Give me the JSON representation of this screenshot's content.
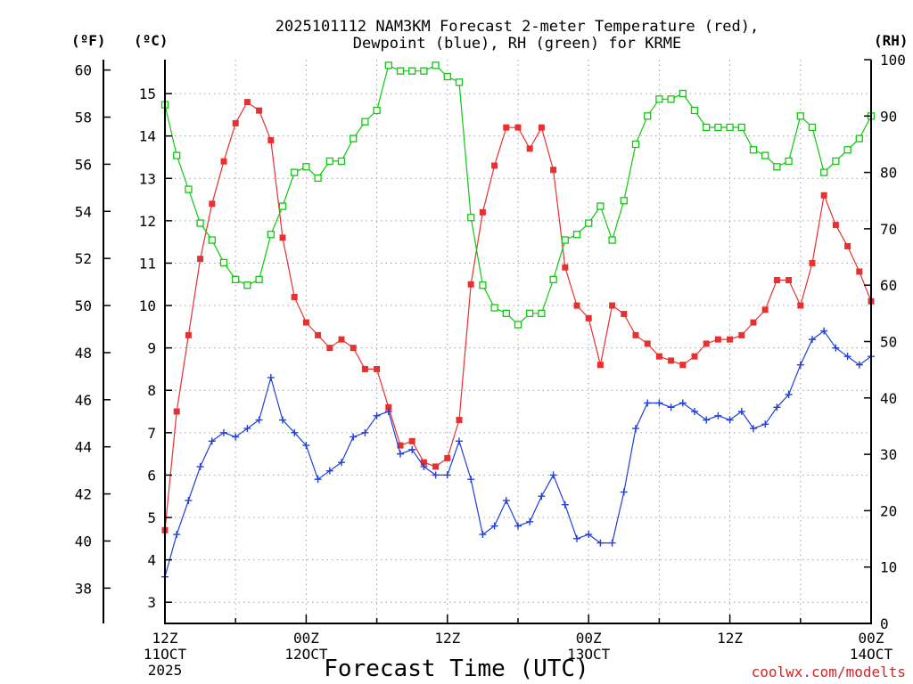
{
  "chart_data": {
    "type": "line",
    "title_line1": "2025101112 NAM3KM Forecast 2-meter Temperature (red),",
    "title_line2": "Dewpoint (blue), RH (green) for KRME",
    "xlabel": "Forecast Time (UTC)",
    "credit": "coolwx.com/modelts",
    "unit_left_f": "(ºF)",
    "unit_left_c": "(ºC)",
    "unit_right": "(RH)",
    "x_hours_range": [
      0,
      60
    ],
    "x_ticks": [
      {
        "hour": 0,
        "line1": "12Z",
        "line2": "11OCT",
        "line3": "2025"
      },
      {
        "hour": 12,
        "line1": "00Z",
        "line2": "12OCT",
        "line3": ""
      },
      {
        "hour": 24,
        "line1": "12Z",
        "line2": "",
        "line3": ""
      },
      {
        "hour": 36,
        "line1": "00Z",
        "line2": "13OCT",
        "line3": ""
      },
      {
        "hour": 48,
        "line1": "12Z",
        "line2": "",
        "line3": ""
      },
      {
        "hour": 60,
        "line1": "00Z",
        "line2": "14OCT",
        "line3": ""
      }
    ],
    "y_celsius_ticks": [
      3,
      4,
      5,
      6,
      7,
      8,
      9,
      10,
      11,
      12,
      13,
      14,
      15
    ],
    "y_fahrenheit_ticks": [
      38,
      40,
      42,
      44,
      46,
      48,
      50,
      52,
      54,
      56,
      58,
      60
    ],
    "y_rh_ticks": [
      0,
      10,
      20,
      30,
      40,
      50,
      60,
      70,
      80,
      90,
      100
    ],
    "ylim_celsius": [
      2.5,
      15.8
    ],
    "ylim_rh": [
      0,
      100
    ],
    "grid": true,
    "colors": {
      "temperature": "#e83030",
      "dewpoint": "#2040d8",
      "rh": "#10c810"
    },
    "series": [
      {
        "key": "temperature",
        "axis": "celsius",
        "marker": "filled-square",
        "values": [
          4.7,
          7.5,
          9.3,
          11.1,
          12.4,
          13.4,
          14.3,
          14.8,
          14.6,
          13.9,
          11.6,
          10.2,
          9.6,
          9.3,
          9.0,
          9.2,
          9.0,
          8.5,
          8.5,
          7.6,
          6.7,
          6.8,
          6.3,
          6.2,
          6.4,
          7.3,
          10.5,
          12.2,
          13.3,
          14.2,
          14.2,
          13.7,
          14.2,
          13.2,
          10.9,
          10.0,
          9.7,
          8.6,
          10.0,
          9.8,
          9.3,
          9.1,
          8.8,
          8.7,
          8.6,
          8.8,
          9.1,
          9.2,
          9.2,
          9.3,
          9.6,
          9.9,
          10.6,
          10.6,
          10.0,
          11.0,
          12.6,
          11.9,
          11.4,
          10.8,
          10.1
        ]
      },
      {
        "key": "dewpoint",
        "axis": "celsius",
        "marker": "plus",
        "values": [
          3.6,
          4.6,
          5.4,
          6.2,
          6.8,
          7.0,
          6.9,
          7.1,
          7.3,
          8.3,
          7.3,
          7.0,
          6.7,
          5.9,
          6.1,
          6.3,
          6.9,
          7.0,
          7.4,
          7.5,
          6.5,
          6.6,
          6.2,
          6.0,
          6.0,
          6.8,
          5.9,
          4.6,
          4.8,
          5.4,
          4.8,
          4.9,
          5.5,
          6.0,
          5.3,
          4.5,
          4.6,
          4.4,
          4.4,
          5.6,
          7.1,
          7.7,
          7.7,
          7.6,
          7.7,
          7.5,
          7.3,
          7.4,
          7.3,
          7.5,
          7.1,
          7.2,
          7.6,
          7.9,
          8.6,
          9.2,
          9.4,
          9.0,
          8.8,
          8.6,
          8.8
        ]
      },
      {
        "key": "rh",
        "axis": "rh",
        "marker": "open-square",
        "values": [
          92,
          83,
          77,
          71,
          68,
          64,
          61,
          60,
          61,
          69,
          74,
          80,
          81,
          79,
          82,
          82,
          86,
          89,
          91,
          99,
          98,
          98,
          98,
          99,
          97,
          96,
          72,
          60,
          56,
          55,
          53,
          55,
          55,
          61,
          68,
          69,
          71,
          74,
          68,
          75,
          85,
          90,
          93,
          93,
          94,
          91,
          88,
          88,
          88,
          88,
          84,
          83,
          81,
          82,
          90,
          88,
          80,
          82,
          84,
          86,
          90
        ]
      }
    ]
  }
}
